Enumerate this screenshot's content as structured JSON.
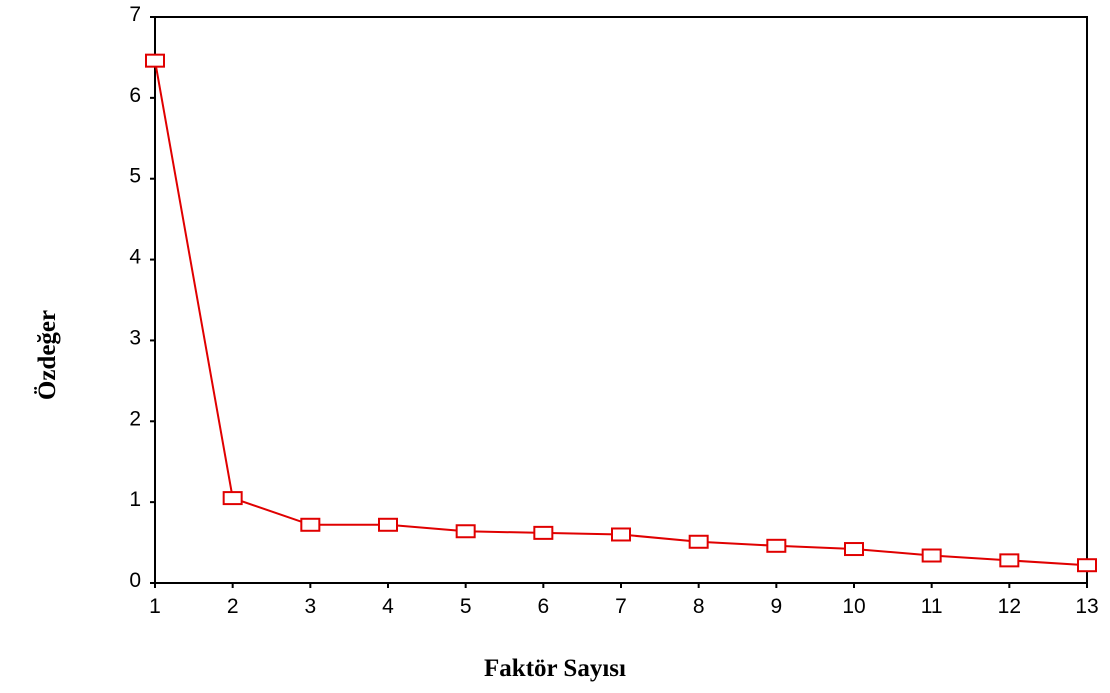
{
  "chart_data": {
    "type": "line",
    "xlabel": "Faktör Sayısı",
    "ylabel": "Özdeğer",
    "x": [
      1,
      2,
      3,
      4,
      5,
      6,
      7,
      8,
      9,
      10,
      11,
      12,
      13
    ],
    "x_tick_labels": [
      "1",
      "2",
      "3",
      "4",
      "5",
      "6",
      "7",
      "8",
      "9",
      "10",
      "11",
      "12",
      "13"
    ],
    "y_tick_labels": [
      "0",
      "1",
      "2",
      "3",
      "4",
      "5",
      "6",
      "7"
    ],
    "xlim": [
      1,
      13
    ],
    "ylim": [
      0,
      7
    ],
    "grid": false,
    "series": [
      {
        "values": [
          6.46,
          1.05,
          0.72,
          0.72,
          0.64,
          0.62,
          0.6,
          0.51,
          0.46,
          0.42,
          0.34,
          0.28,
          0.22
        ],
        "color": "#e00000",
        "marker": "square"
      }
    ]
  }
}
